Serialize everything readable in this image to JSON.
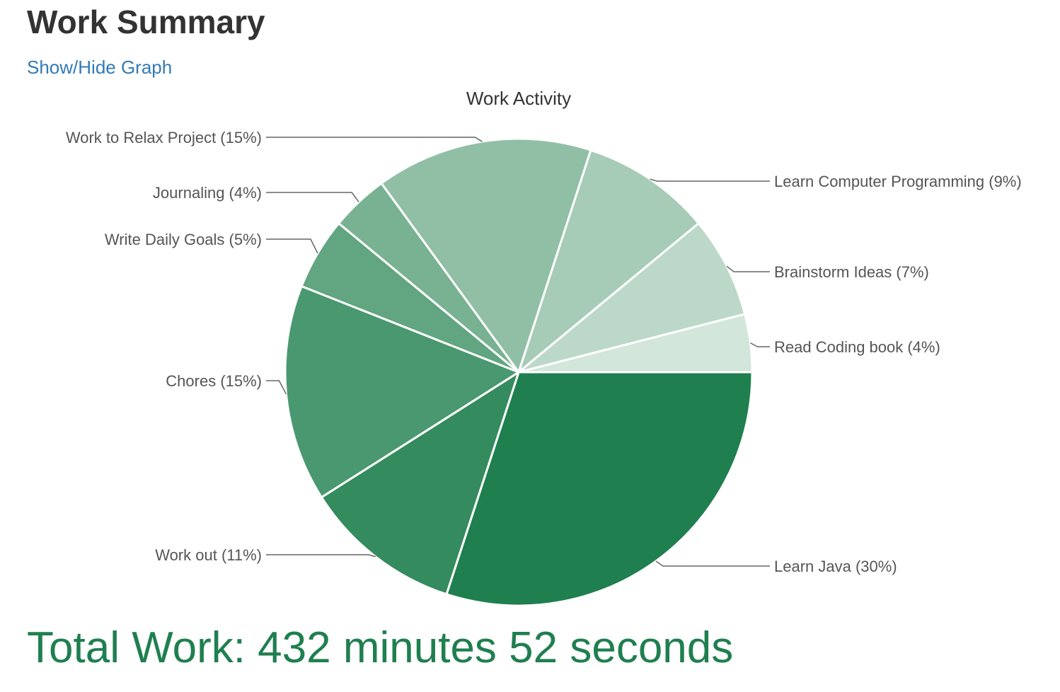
{
  "page": {
    "heading": "Work Summary",
    "toggle_link": "Show/Hide Graph",
    "total_label": "Total Work: 432 minutes 52 seconds"
  },
  "colors": {
    "heading": "#333333",
    "link": "#337ab7",
    "total": "#1f7f4f",
    "slice_dark": "#1f7f4f",
    "slice_light": "#d2e6da"
  },
  "chart_data": {
    "type": "pie",
    "title": "Work Activity",
    "legend": "labeled",
    "slices": [
      {
        "label": "Learn Java (30%)",
        "value": 30,
        "color": "#1f7f4f"
      },
      {
        "label": "Work out (11%)",
        "value": 11,
        "color": "#348b5e"
      },
      {
        "label": "Chores (15%)",
        "value": 15,
        "color": "#4a9870"
      },
      {
        "label": "Write Daily Goals (5%)",
        "value": 5,
        "color": "#62a581"
      },
      {
        "label": "Journaling (4%)",
        "value": 4,
        "color": "#79b293"
      },
      {
        "label": "Work to Relax Project (15%)",
        "value": 15,
        "color": "#91bfa6"
      },
      {
        "label": "Learn Computer Programming (9%)",
        "value": 9,
        "color": "#a6cbb7"
      },
      {
        "label": "Brainstorm Ideas (7%)",
        "value": 7,
        "color": "#bcd8c8"
      },
      {
        "label": "Read Coding book (4%)",
        "value": 4,
        "color": "#d2e6da"
      }
    ]
  }
}
